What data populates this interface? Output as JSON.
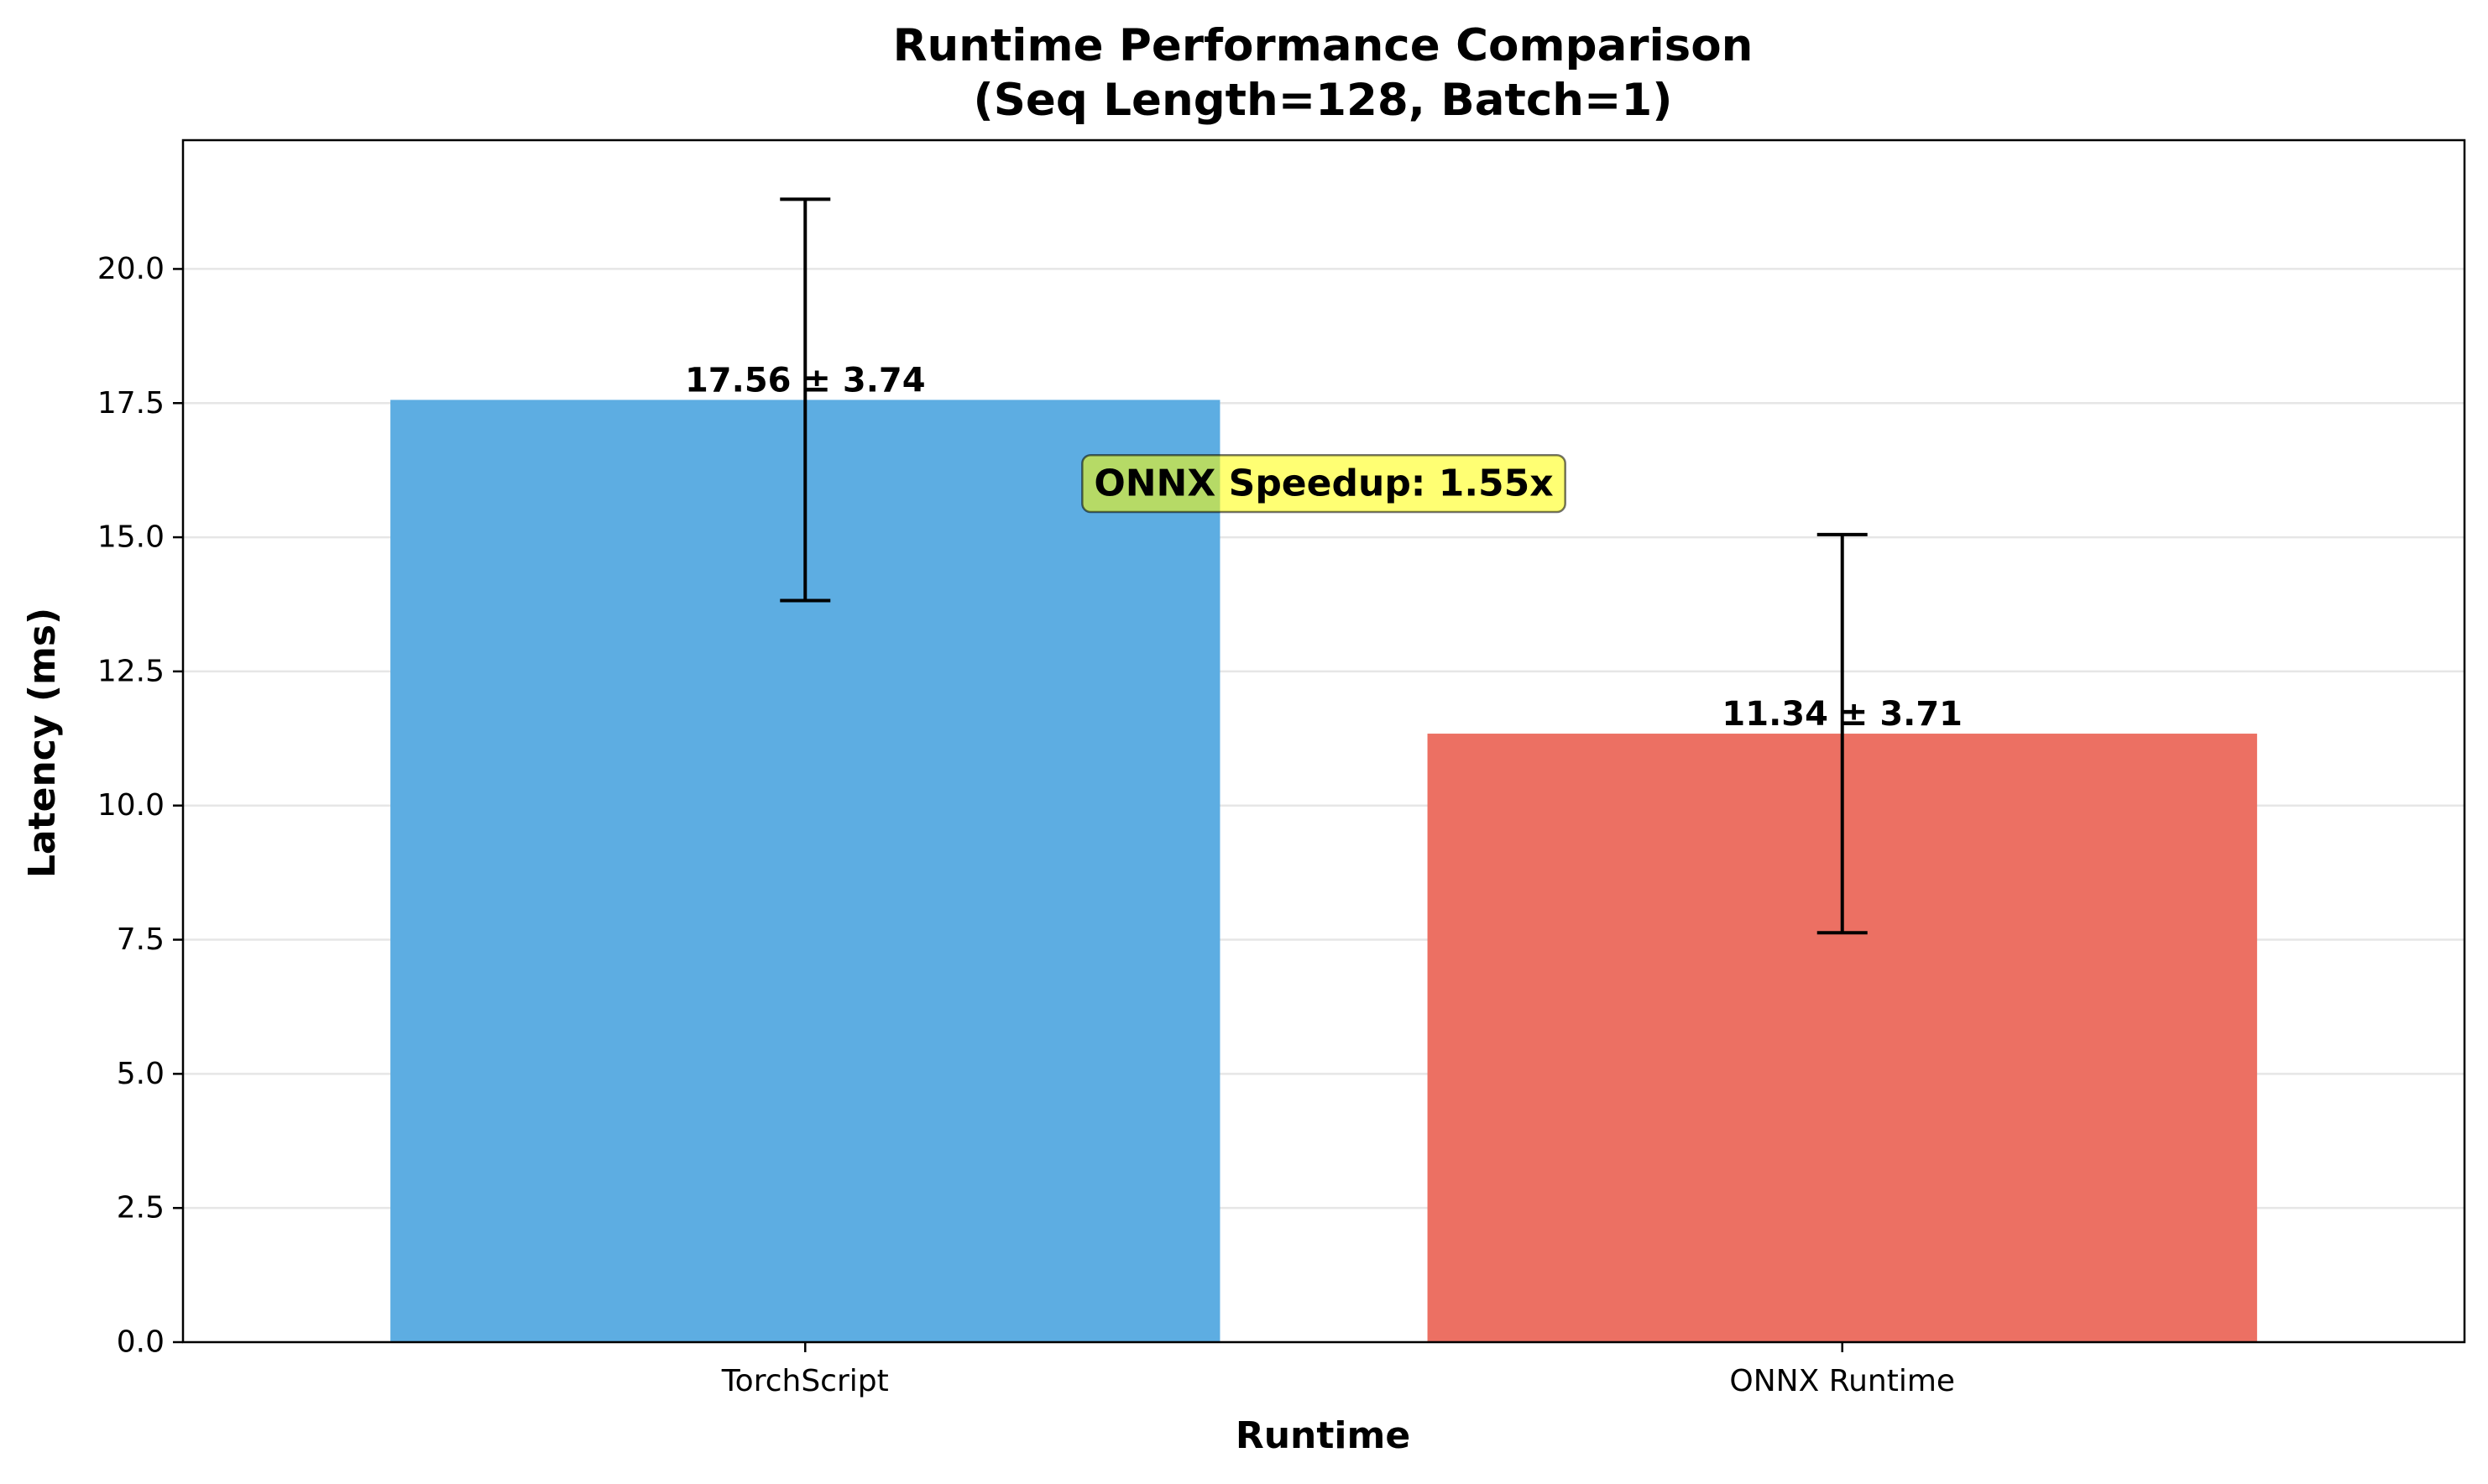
{
  "chart_data": {
    "type": "bar",
    "title": [
      "Runtime Performance Comparison",
      "(Seq Length=128, Batch=1)"
    ],
    "xlabel": "Runtime",
    "ylabel": "Latency (ms)",
    "categories": [
      "TorchScript",
      "ONNX Runtime"
    ],
    "values": [
      17.56,
      11.34
    ],
    "errors": [
      3.74,
      3.71
    ],
    "data_labels": [
      "17.56 ± 3.74",
      "11.34 ± 3.71"
    ],
    "colors": [
      "#5DADE2",
      "#EC7063"
    ],
    "ylim": [
      0,
      22.4
    ],
    "yticks": [
      0,
      2.5,
      5,
      7.5,
      10,
      12.5,
      15,
      17.5,
      20
    ],
    "ytick_labels": [
      "0.0",
      "2.5",
      "5.0",
      "7.5",
      "10.0",
      "12.5",
      "15.0",
      "17.5",
      "20.0"
    ],
    "grid": "y",
    "annotation": {
      "text": "ONNX Speedup: 1.55x",
      "value_y": 16.0,
      "box_color": "#FFFF00"
    }
  }
}
